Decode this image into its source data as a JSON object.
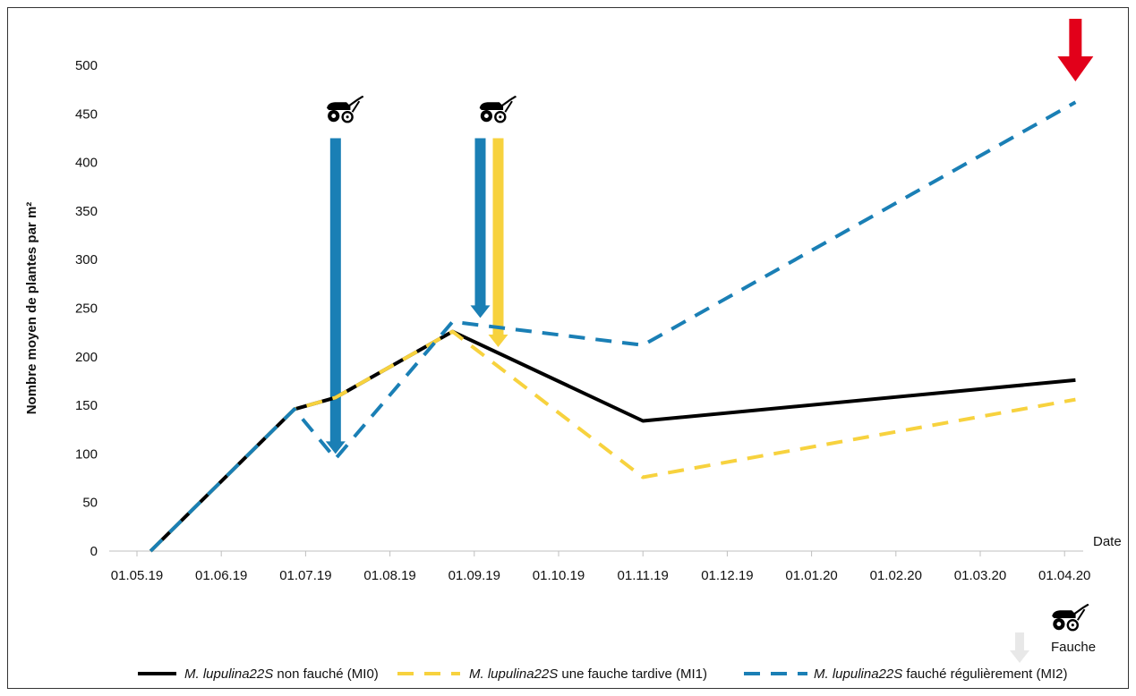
{
  "chart_data": {
    "type": "line",
    "ylabel": "Nombre moyen de plantes par m²",
    "xlabel": "Date",
    "ylim": [
      0,
      500
    ],
    "yticks": [
      0,
      50,
      100,
      150,
      200,
      250,
      300,
      350,
      400,
      450,
      500
    ],
    "xticks": [
      "01.05.19",
      "01.06.19",
      "01.07.19",
      "01.08.19",
      "01.09.19",
      "01.10.19",
      "01.11.19",
      "01.12.19",
      "01.01.20",
      "01.02.20",
      "01.03.20",
      "01.04.20"
    ],
    "grid": false,
    "legend_position": "bottom",
    "series": [
      {
        "name_italic": "M. lupulina22S",
        "name_rest": " non fauché (MI0)",
        "color": "#000000",
        "style": "solid",
        "points": [
          [
            "06.05.19",
            0
          ],
          [
            "27.06.19",
            146
          ],
          [
            "12.07.19",
            158
          ],
          [
            "24.08.19",
            226
          ],
          [
            "01.11.19",
            134
          ],
          [
            "05.04.20",
            176
          ]
        ]
      },
      {
        "name_italic": "M. lupulina22S",
        "name_rest": " une fauche tardive (MI1)",
        "color": "#F7D23E",
        "style": "dashed",
        "points": [
          [
            "06.05.19",
            0
          ],
          [
            "27.06.19",
            146
          ],
          [
            "12.07.19",
            158
          ],
          [
            "24.08.19",
            226
          ],
          [
            "01.11.19",
            76
          ],
          [
            "05.04.20",
            156
          ]
        ]
      },
      {
        "name_italic": "M. lupulina22S",
        "name_rest": " fauché régulièrement (MI2)",
        "color": "#1A7FB5",
        "style": "dashed",
        "points": [
          [
            "06.05.19",
            0
          ],
          [
            "27.06.19",
            146
          ],
          [
            "12.07.19",
            95
          ],
          [
            "24.08.19",
            236
          ],
          [
            "01.11.19",
            212
          ],
          [
            "05.04.20",
            462
          ]
        ]
      }
    ],
    "annotations": {
      "mowing_arrows": [
        {
          "date": "12.07.19",
          "from": 425,
          "to": 100,
          "color": "#1A7FB5",
          "side": "center"
        },
        {
          "date": "06.09.19",
          "from": 425,
          "to": 240,
          "color": "#1A7FB5",
          "side": "left"
        },
        {
          "date": "06.09.19",
          "from": 425,
          "to": 210,
          "color": "#F7D23E",
          "side": "right"
        }
      ],
      "mower_icons": [
        "12.07.19",
        "06.09.19"
      ],
      "end_arrow": {
        "date": "05.04.20",
        "color": "#E2001A"
      },
      "fauche_label": "Fauche",
      "fauche_arrow_color": "#E8E8E8"
    }
  }
}
